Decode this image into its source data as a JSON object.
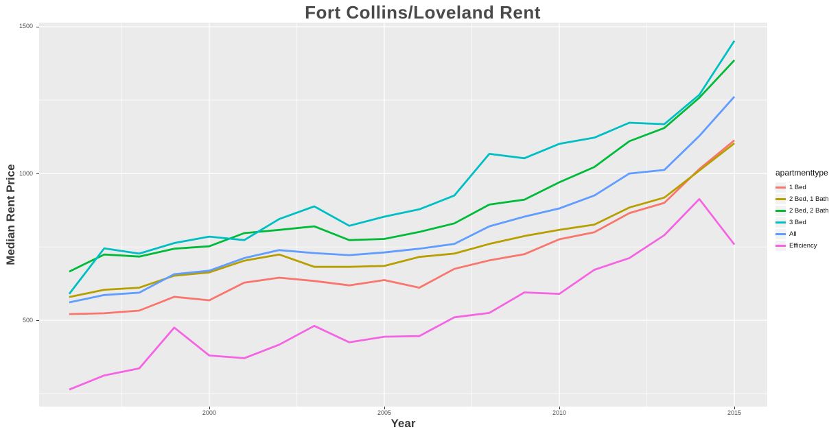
{
  "chart_data": {
    "type": "line",
    "title": "Fort Collins/Loveland Rent",
    "xlabel": "Year",
    "ylabel": "Median Rent Price",
    "legend_title": "apartmenttype",
    "legend_position": "right",
    "grid": true,
    "panel_bg": "#EBEBEB",
    "grid_color": "#FFFFFF",
    "tick_color": "#333333",
    "tick_label_color": "#4D4D4D",
    "x_domain": [
      1995.14,
      2015.94
    ],
    "y_domain": [
      206,
      1514
    ],
    "x_ticks": [
      2000,
      2005,
      2010,
      2015
    ],
    "x_tick_labels": [
      "2000",
      "2005",
      "2010",
      "2015"
    ],
    "x_minor_ticks": [
      1997.5,
      2002.5,
      2007.5,
      2012.5
    ],
    "y_ticks": [
      500,
      1000,
      1500
    ],
    "y_tick_labels": [
      "500",
      "1000",
      "1500"
    ],
    "y_minor_ticks": [
      250,
      750,
      1250
    ],
    "x": [
      1996,
      1997,
      1998,
      1999,
      2000,
      2001,
      2002,
      2003,
      2004,
      2005,
      2006,
      2007,
      2008,
      2009,
      2010,
      2011,
      2012,
      2013,
      2014,
      2015
    ],
    "series": [
      {
        "name": "1 Bed",
        "color": "#F8766D",
        "values": [
          521,
          524,
          533,
          580,
          568,
          628,
          645,
          634,
          619,
          637,
          611,
          675,
          704,
          725,
          776,
          800,
          865,
          900,
          1015,
          1113
        ]
      },
      {
        "name": "2 Bed, 1 Bath",
        "color": "#B79F00",
        "values": [
          579,
          604,
          611,
          652,
          663,
          703,
          724,
          682,
          682,
          685,
          716,
          727,
          760,
          787,
          808,
          826,
          884,
          918,
          1010,
          1103
        ]
      },
      {
        "name": "2 Bed, 2 Bath",
        "color": "#00BA38",
        "values": [
          666,
          724,
          717,
          744,
          752,
          797,
          808,
          820,
          773,
          777,
          801,
          830,
          894,
          911,
          970,
          1022,
          1110,
          1155,
          1258,
          1386
        ]
      },
      {
        "name": "3 Bed",
        "color": "#00BFC4",
        "values": [
          590,
          745,
          727,
          763,
          785,
          773,
          845,
          888,
          822,
          853,
          878,
          925,
          1067,
          1052,
          1101,
          1122,
          1173,
          1168,
          1268,
          1452
        ]
      },
      {
        "name": "All",
        "color": "#619CFF",
        "values": [
          561,
          586,
          594,
          657,
          669,
          712,
          739,
          729,
          722,
          731,
          744,
          760,
          820,
          853,
          881,
          925,
          1000,
          1012,
          1128,
          1262
        ]
      },
      {
        "name": "Efficiency",
        "color": "#F564E3",
        "values": [
          264,
          312,
          336,
          475,
          380,
          371,
          417,
          481,
          425,
          444,
          446,
          510,
          525,
          595,
          590,
          672,
          712,
          790,
          913,
          758
        ]
      }
    ]
  }
}
